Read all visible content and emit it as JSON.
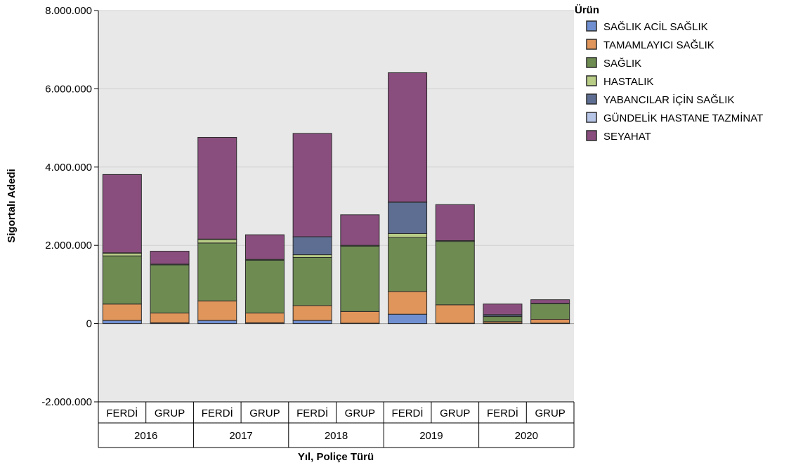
{
  "chart_data": {
    "type": "bar",
    "stacked": true,
    "xlabel": "Yıl, Poliçe Türü",
    "ylabel": "Sigortalı Adedi",
    "ylim": [
      -2000000,
      8000000
    ],
    "yticks": [
      -2000000,
      0,
      2000000,
      4000000,
      6000000,
      8000000
    ],
    "ytick_labels": [
      "-2.000.000",
      "0",
      "2.000.000",
      "4.000.000",
      "6.000.000",
      "8.000.000"
    ],
    "grid": true,
    "legend_title": "Ürün",
    "legend_position": "right",
    "categories": [
      "FERDİ",
      "GRUP",
      "FERDİ",
      "GRUP",
      "FERDİ",
      "GRUP",
      "FERDİ",
      "GRUP",
      "FERDİ",
      "GRUP"
    ],
    "groups": [
      {
        "label": "2016",
        "span": 2
      },
      {
        "label": "2017",
        "span": 2
      },
      {
        "label": "2018",
        "span": 2
      },
      {
        "label": "2019",
        "span": 2
      },
      {
        "label": "2020",
        "span": 2
      }
    ],
    "series": [
      {
        "name": "SAĞLIK ACİL SAĞLIK",
        "color": "#6f8fd0",
        "values": [
          80000,
          20000,
          80000,
          20000,
          80000,
          10000,
          240000,
          10000,
          10000,
          10000
        ]
      },
      {
        "name": "TAMAMLAYICI SAĞLIK",
        "color": "#e0955a",
        "values": [
          420000,
          250000,
          500000,
          250000,
          380000,
          300000,
          580000,
          470000,
          40000,
          100000
        ]
      },
      {
        "name": "SAĞLIK",
        "color": "#6e8c52",
        "values": [
          1230000,
          1230000,
          1480000,
          1350000,
          1230000,
          1670000,
          1380000,
          1620000,
          130000,
          400000
        ]
      },
      {
        "name": "HASTALIK",
        "color": "#b8cc86",
        "values": [
          70000,
          20000,
          90000,
          20000,
          70000,
          20000,
          100000,
          20000,
          10000,
          10000
        ]
      },
      {
        "name": "YABANCILAR İÇİN SAĞLIK",
        "color": "#5e6e92",
        "values": [
          10000,
          0,
          10000,
          0,
          460000,
          0,
          800000,
          0,
          40000,
          0
        ]
      },
      {
        "name": "GÜNDELİK HASTANE TAZMİNAT",
        "color": "#b6c4e6",
        "values": [
          0,
          0,
          0,
          0,
          0,
          0,
          10000,
          0,
          0,
          0
        ]
      },
      {
        "name": "SEYAHAT",
        "color": "#8a4e7e",
        "values": [
          2000000,
          330000,
          2600000,
          630000,
          2640000,
          780000,
          3300000,
          920000,
          270000,
          90000
        ]
      }
    ]
  }
}
